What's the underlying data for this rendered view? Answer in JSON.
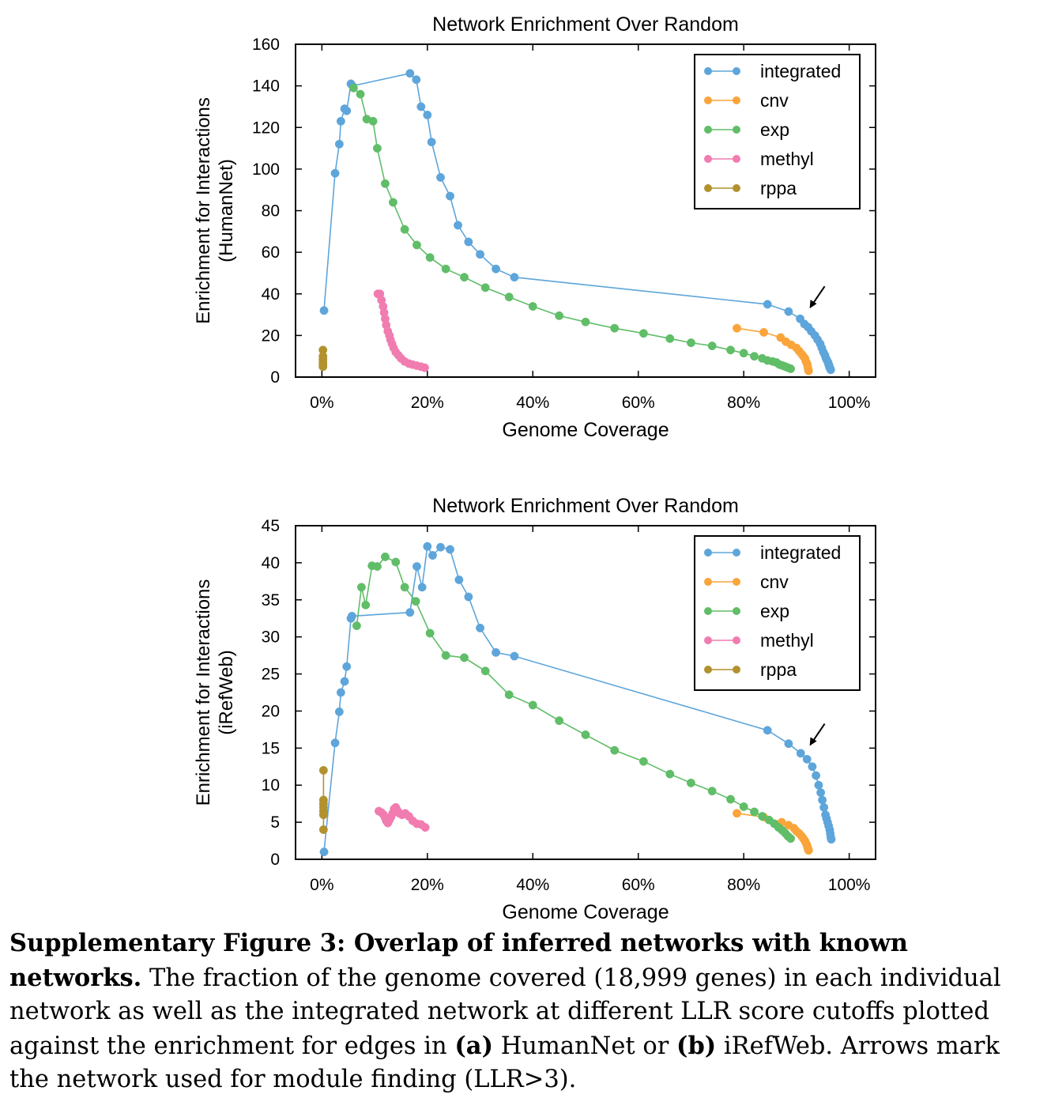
{
  "chart_data": [
    {
      "type": "line",
      "title": "Network Enrichment Over Random",
      "xlabel": "Genome Coverage",
      "ylabel": "Enrichment for Interactions",
      "ylabel2": "(HumanNet)",
      "xlim": [
        -0.05,
        1.05
      ],
      "ylim": [
        0,
        160
      ],
      "xticks": [
        0,
        0.2,
        0.4,
        0.6,
        0.8,
        1.0
      ],
      "xtick_labels": [
        "0%",
        "20%",
        "40%",
        "60%",
        "80%",
        "100%"
      ],
      "yticks": [
        0,
        20,
        40,
        60,
        80,
        100,
        120,
        140,
        160
      ],
      "ytick_labels": [
        "0",
        "20",
        "40",
        "60",
        "80",
        "100",
        "120",
        "140",
        "160"
      ],
      "grid": false,
      "legend": "top-right",
      "annotation_arrow": {
        "x": 0.925,
        "y": 33
      },
      "series": [
        {
          "name": "integrated",
          "color": "#5DA5DA",
          "x": [
            0.004,
            0.025,
            0.033,
            0.036,
            0.043,
            0.047,
            0.055,
            0.058,
            0.167,
            0.179,
            0.188,
            0.2,
            0.208,
            0.225,
            0.243,
            0.258,
            0.278,
            0.3,
            0.33,
            0.365,
            0.845,
            0.885,
            0.907,
            0.915,
            0.922,
            0.928,
            0.935,
            0.94,
            0.945,
            0.948,
            0.951,
            0.954,
            0.956,
            0.958,
            0.96,
            0.961,
            0.962,
            0.963,
            0.964,
            0.965
          ],
          "y": [
            32,
            98,
            112,
            123,
            129,
            128,
            141,
            140,
            146,
            143,
            130,
            126,
            113,
            96,
            87,
            73,
            65,
            59,
            52,
            48,
            35,
            31.5,
            28,
            25.5,
            24,
            22,
            20,
            18,
            16,
            14,
            12,
            10.5,
            9,
            8,
            7,
            6,
            5.5,
            4.5,
            4,
            3.5
          ]
        },
        {
          "name": "cnv",
          "color": "#FAA43A",
          "x": [
            0.787,
            0.838,
            0.87,
            0.88,
            0.89,
            0.9,
            0.905,
            0.91,
            0.913,
            0.916,
            0.918,
            0.92,
            0.921,
            0.922,
            0.923
          ],
          "y": [
            23.5,
            21.5,
            19,
            17,
            15.5,
            14,
            12.5,
            11,
            10,
            9,
            7.5,
            6.5,
            5.5,
            4,
            3
          ]
        },
        {
          "name": "exp",
          "color": "#60BD68",
          "x": [
            0.06,
            0.073,
            0.085,
            0.097,
            0.105,
            0.12,
            0.135,
            0.157,
            0.18,
            0.205,
            0.235,
            0.27,
            0.31,
            0.355,
            0.4,
            0.45,
            0.5,
            0.555,
            0.61,
            0.66,
            0.7,
            0.74,
            0.775,
            0.8,
            0.82,
            0.835,
            0.845,
            0.855,
            0.862,
            0.868,
            0.874,
            0.879,
            0.884,
            0.889
          ],
          "y": [
            139,
            136,
            124,
            123,
            110,
            93,
            84,
            71,
            63.5,
            57.5,
            52,
            48,
            43,
            38.5,
            34,
            29.5,
            26.5,
            23.5,
            21,
            18.5,
            16.5,
            15,
            13,
            11.5,
            10,
            9,
            8,
            7.5,
            7,
            6,
            5.5,
            5,
            4.5,
            4
          ]
        },
        {
          "name": "methyl",
          "color": "#F17CB0",
          "x": [
            0.106,
            0.11,
            0.113,
            0.116,
            0.118,
            0.12,
            0.122,
            0.125,
            0.128,
            0.13,
            0.133,
            0.136,
            0.14,
            0.145,
            0.15,
            0.157,
            0.165,
            0.172,
            0.18,
            0.188,
            0.195
          ],
          "y": [
            40,
            40,
            37,
            34,
            31,
            28,
            25,
            22,
            20,
            18,
            16,
            14,
            12,
            10.5,
            9,
            7.5,
            6.5,
            6,
            5.5,
            5,
            4.5
          ]
        },
        {
          "name": "rppa",
          "color": "#B2912F",
          "x": [
            0.002,
            0.002,
            0.002,
            0.002,
            0.002,
            0.002
          ],
          "y": [
            13,
            10,
            8.5,
            7,
            6,
            5
          ]
        }
      ]
    },
    {
      "type": "line",
      "title": "Network Enrichment Over Random",
      "xlabel": "Genome Coverage",
      "ylabel": "Enrichment for Interactions",
      "ylabel2": "(iRefWeb)",
      "xlim": [
        -0.05,
        1.05
      ],
      "ylim": [
        0,
        45
      ],
      "xticks": [
        0,
        0.2,
        0.4,
        0.6,
        0.8,
        1.0
      ],
      "xtick_labels": [
        "0%",
        "20%",
        "40%",
        "60%",
        "80%",
        "100%"
      ],
      "yticks": [
        0,
        5,
        10,
        15,
        20,
        25,
        30,
        35,
        40,
        45
      ],
      "ytick_labels": [
        "0",
        "5",
        "10",
        "15",
        "20",
        "25",
        "30",
        "35",
        "40",
        "45"
      ],
      "grid": false,
      "legend": "top-right",
      "annotation_arrow": {
        "x": 0.925,
        "y": 15.3
      },
      "series": [
        {
          "name": "integrated",
          "color": "#5DA5DA",
          "x": [
            0.004,
            0.025,
            0.033,
            0.036,
            0.043,
            0.047,
            0.055,
            0.057,
            0.167,
            0.18,
            0.19,
            0.2,
            0.21,
            0.225,
            0.243,
            0.26,
            0.278,
            0.3,
            0.33,
            0.365,
            0.845,
            0.885,
            0.908,
            0.92,
            0.93,
            0.937,
            0.942,
            0.946,
            0.949,
            0.952,
            0.955,
            0.957,
            0.959,
            0.961,
            0.963,
            0.964,
            0.965,
            0.966
          ],
          "y": [
            1,
            15.7,
            19.9,
            22.5,
            24,
            26,
            32.5,
            32.8,
            33.3,
            39.5,
            36.7,
            42.2,
            41,
            42.1,
            41.8,
            37.7,
            35.4,
            31.2,
            27.9,
            27.4,
            17.4,
            15.6,
            14.3,
            13.5,
            12.5,
            11.3,
            10,
            9,
            8,
            7,
            6,
            5.5,
            5,
            4.5,
            4,
            3.5,
            3,
            2.7
          ]
        },
        {
          "name": "cnv",
          "color": "#FAA43A",
          "x": [
            0.787,
            0.838,
            0.872,
            0.885,
            0.895,
            0.9,
            0.905,
            0.91,
            0.913,
            0.916,
            0.918,
            0.92,
            0.921,
            0.922,
            0.923
          ],
          "y": [
            6.2,
            5.7,
            5,
            4.6,
            4.2,
            3.8,
            3.5,
            3.1,
            2.8,
            2.5,
            2.2,
            1.9,
            1.6,
            1.4,
            1.2
          ]
        },
        {
          "name": "exp",
          "color": "#60BD68",
          "x": [
            0.066,
            0.075,
            0.083,
            0.095,
            0.105,
            0.12,
            0.14,
            0.157,
            0.178,
            0.205,
            0.235,
            0.27,
            0.31,
            0.355,
            0.4,
            0.45,
            0.5,
            0.555,
            0.61,
            0.66,
            0.7,
            0.74,
            0.775,
            0.8,
            0.82,
            0.835,
            0.848,
            0.858,
            0.866,
            0.873,
            0.879,
            0.884,
            0.889
          ],
          "y": [
            31.5,
            36.7,
            34.3,
            39.6,
            39.5,
            40.8,
            40.1,
            36.7,
            34.8,
            30.5,
            27.5,
            27.2,
            25.4,
            22.2,
            20.8,
            18.7,
            16.8,
            14.7,
            13.2,
            11.5,
            10.3,
            9.2,
            8.1,
            7.1,
            6.4,
            5.8,
            5.3,
            4.8,
            4.3,
            3.9,
            3.5,
            3.1,
            2.8
          ]
        },
        {
          "name": "methyl",
          "color": "#F17CB0",
          "x": [
            0.108,
            0.113,
            0.117,
            0.12,
            0.122,
            0.125,
            0.128,
            0.131,
            0.134,
            0.137,
            0.14,
            0.143,
            0.147,
            0.152,
            0.158,
            0.165,
            0.172,
            0.18,
            0.188,
            0.196
          ],
          "y": [
            6.5,
            6.3,
            6,
            5.6,
            5.2,
            4.9,
            5.3,
            5.7,
            6.2,
            6.8,
            7,
            6.6,
            6.2,
            6,
            6.2,
            5.8,
            5.2,
            4.8,
            4.7,
            4.3
          ]
        },
        {
          "name": "rppa",
          "color": "#B2912F",
          "x": [
            0.003,
            0.003,
            0.003,
            0.003,
            0.003,
            0.003,
            0.003
          ],
          "y": [
            12,
            8,
            7,
            6,
            4,
            7.5,
            6.5
          ]
        }
      ]
    }
  ],
  "caption": {
    "lead": "Supplementary Figure 3: Overlap of inferred networks with known networks.",
    "t1": " The fraction of the genome covered (18,999 genes) in each individual network as well as the integrated network at different LLR score cutoffs plotted against the enrichment for edges in ",
    "a": "(a)",
    "t2": " HumanNet or ",
    "b": "(b)",
    "t3": " iRefWeb. Arrows mark the network used for module finding (LLR>3)."
  }
}
